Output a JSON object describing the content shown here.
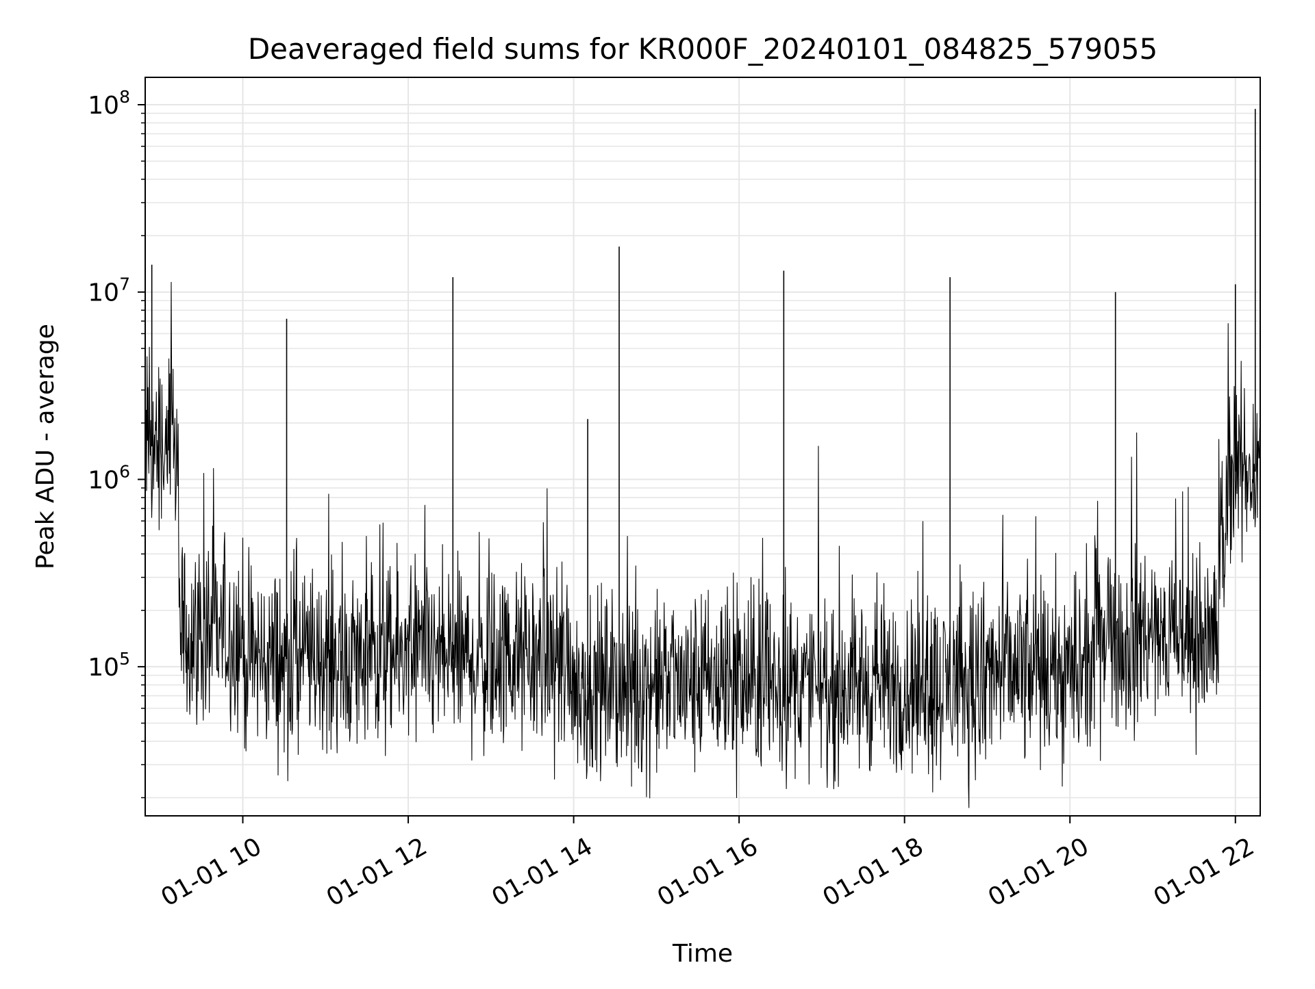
{
  "chart_data": {
    "type": "line",
    "title": "Deaveraged field sums for KR000F_20240101_084825_579055",
    "xlabel": "Time",
    "ylabel": "Peak ADU - average",
    "y_scale": "log",
    "x_tick_labels": [
      "01-01 10",
      "01-01 12",
      "01-01 14",
      "01-01 16",
      "01-01 18",
      "01-01 20",
      "01-01 22"
    ],
    "x_ticks_hours": [
      10,
      12,
      14,
      16,
      18,
      20,
      22
    ],
    "xlim_hours": [
      8.82,
      22.3
    ],
    "ylim": [
      16000,
      140000000
    ],
    "y_major_ticks": [
      {
        "value": 100000,
        "base": "10",
        "exp": "5"
      },
      {
        "value": 1000000,
        "base": "10",
        "exp": "6"
      },
      {
        "value": 10000000,
        "base": "10",
        "exp": "7"
      },
      {
        "value": 100000000,
        "base": "10",
        "exp": "8"
      }
    ],
    "grid": true,
    "line_color": "#000000",
    "grid_color": "#e6e6e6",
    "series": [
      {
        "values_description": "dense noisy time series",
        "baseline_segments": [
          {
            "hours": [
              8.82,
              9.22
            ],
            "median": 1500000
          },
          {
            "hours": [
              9.22,
              10.0
            ],
            "median": 150000
          },
          {
            "hours": [
              10.0,
              14.0
            ],
            "median": 110000
          },
          {
            "hours": [
              14.0,
              19.0
            ],
            "median": 80000
          },
          {
            "hours": [
              19.0,
              20.3
            ],
            "median": 90000
          },
          {
            "hours": [
              20.3,
              21.8
            ],
            "median": 140000
          },
          {
            "hours": [
              21.8,
              21.9
            ],
            "median": 500000
          },
          {
            "hours": [
              21.9,
              22.3
            ],
            "median": 1100000
          }
        ],
        "spikes": [
          {
            "hour": 8.9,
            "value": 14000000
          },
          {
            "hour": 10.53,
            "value": 7200000
          },
          {
            "hour": 12.54,
            "value": 12000000
          },
          {
            "hour": 14.17,
            "value": 2100000
          },
          {
            "hour": 14.55,
            "value": 17500000
          },
          {
            "hour": 16.54,
            "value": 13000000
          },
          {
            "hour": 18.55,
            "value": 12000000
          },
          {
            "hour": 20.55,
            "value": 10000000
          },
          {
            "hour": 22.0,
            "value": 11000000
          },
          {
            "hour": 22.24,
            "value": 95000000
          }
        ],
        "dips": [
          {
            "hour": 10.5,
            "value": 35000
          },
          {
            "hour": 10.67,
            "value": 34000
          },
          {
            "hour": 14.7,
            "value": 23000
          },
          {
            "hour": 17.06,
            "value": 30000
          }
        ]
      }
    ]
  }
}
